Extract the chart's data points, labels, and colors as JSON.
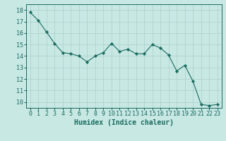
{
  "x": [
    0,
    1,
    2,
    3,
    4,
    5,
    6,
    7,
    8,
    9,
    10,
    11,
    12,
    13,
    14,
    15,
    16,
    17,
    18,
    19,
    20,
    21,
    22,
    23
  ],
  "y": [
    17.8,
    17.1,
    16.1,
    15.1,
    14.3,
    14.2,
    14.0,
    13.5,
    14.0,
    14.3,
    15.1,
    14.4,
    14.6,
    14.2,
    14.2,
    15.0,
    14.7,
    14.1,
    12.7,
    13.2,
    11.8,
    9.8,
    9.7,
    9.8
  ],
  "line_color": "#1a6b5e",
  "marker": "D",
  "marker_size": 2.2,
  "bg_color": "#c8e8e4",
  "grid_color": "#aacfca",
  "xlabel": "Humidex (Indice chaleur)",
  "xlim": [
    -0.5,
    23.5
  ],
  "ylim": [
    9.5,
    18.5
  ],
  "yticks": [
    10,
    11,
    12,
    13,
    14,
    15,
    16,
    17,
    18
  ],
  "xticks": [
    0,
    1,
    2,
    3,
    4,
    5,
    6,
    7,
    8,
    9,
    10,
    11,
    12,
    13,
    14,
    15,
    16,
    17,
    18,
    19,
    20,
    21,
    22,
    23
  ],
  "tick_color": "#1a6b5e",
  "label_color": "#1a6b5e",
  "label_fontsize": 7.0,
  "tick_fontsize": 6.0
}
